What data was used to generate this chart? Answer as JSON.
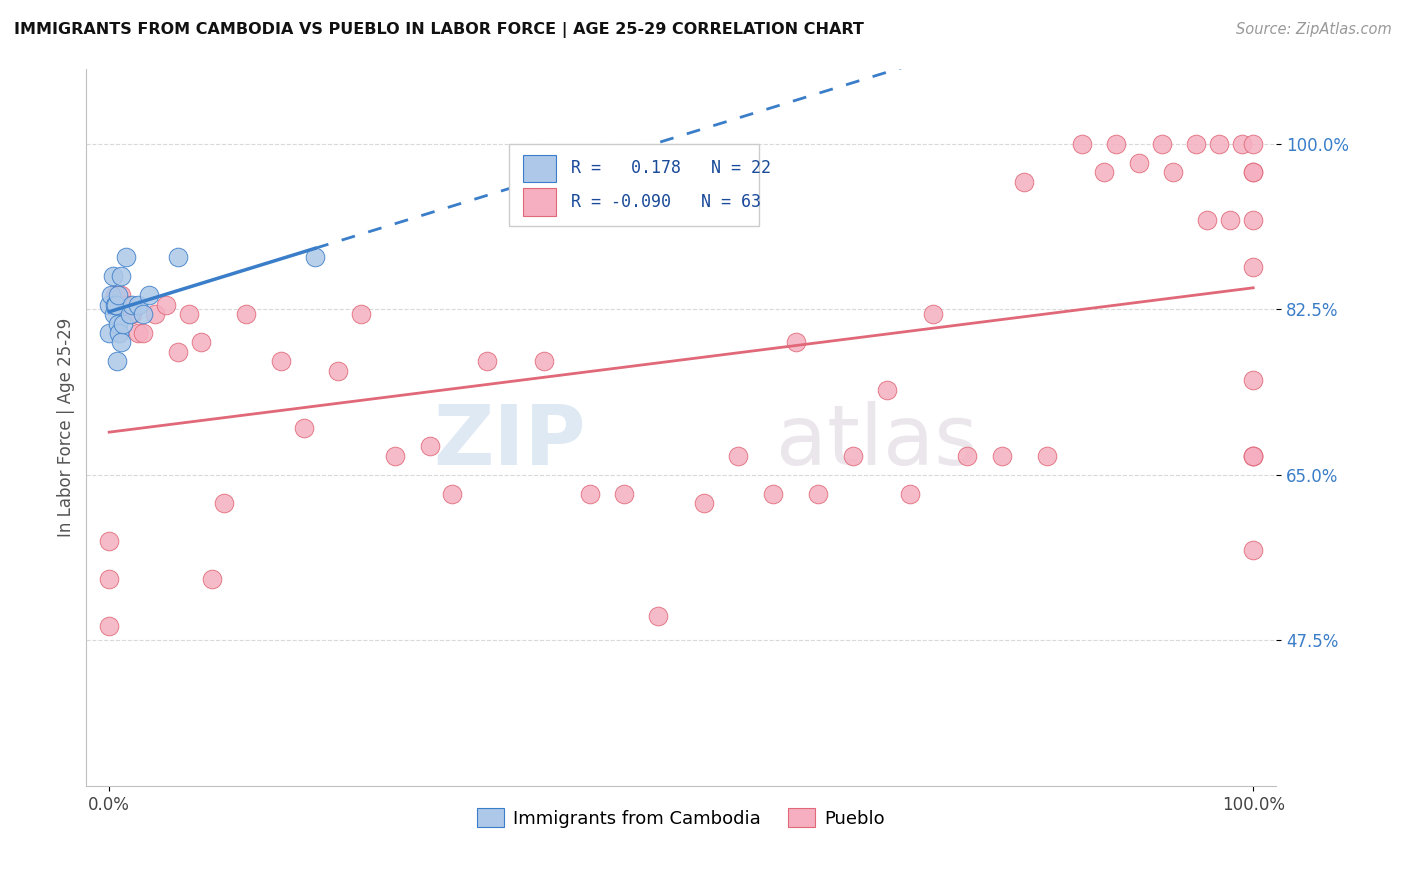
{
  "title": "IMMIGRANTS FROM CAMBODIA VS PUEBLO IN LABOR FORCE | AGE 25-29 CORRELATION CHART",
  "source": "Source: ZipAtlas.com",
  "ylabel": "In Labor Force | Age 25-29",
  "xlim": [
    -0.02,
    1.02
  ],
  "ylim": [
    0.32,
    1.08
  ],
  "ytick_labels": [
    "47.5%",
    "65.0%",
    "82.5%",
    "100.0%"
  ],
  "ytick_values": [
    0.475,
    0.65,
    0.825,
    1.0
  ],
  "xtick_labels": [
    "0.0%",
    "100.0%"
  ],
  "xtick_values": [
    0.0,
    1.0
  ],
  "legend_R_cambodia": "0.178",
  "legend_N_cambodia": "22",
  "legend_R_pueblo": "-0.090",
  "legend_N_pueblo": "63",
  "cambodia_color": "#adc8e8",
  "pueblo_color": "#f5afc0",
  "trendline_cambodia_color": "#3a7dc8",
  "trendline_pueblo_color": "#e06878",
  "watermark_zip": "ZIP",
  "watermark_atlas": "atlas",
  "cambodia_x": [
    0.0,
    0.0,
    0.002,
    0.003,
    0.004,
    0.005,
    0.006,
    0.007,
    0.008,
    0.008,
    0.009,
    0.01,
    0.01,
    0.012,
    0.015,
    0.018,
    0.02,
    0.025,
    0.03,
    0.035,
    0.06,
    0.18
  ],
  "cambodia_y": [
    0.83,
    0.8,
    0.84,
    0.86,
    0.82,
    0.83,
    0.83,
    0.77,
    0.84,
    0.81,
    0.8,
    0.86,
    0.79,
    0.81,
    0.88,
    0.82,
    0.83,
    0.83,
    0.82,
    0.84,
    0.88,
    0.88
  ],
  "pueblo_x": [
    0.0,
    0.0,
    0.0,
    0.005,
    0.01,
    0.015,
    0.02,
    0.025,
    0.03,
    0.04,
    0.05,
    0.06,
    0.07,
    0.08,
    0.09,
    0.1,
    0.12,
    0.15,
    0.17,
    0.2,
    0.22,
    0.25,
    0.28,
    0.3,
    0.33,
    0.38,
    0.42,
    0.45,
    0.48,
    0.52,
    0.55,
    0.58,
    0.6,
    0.62,
    0.65,
    0.68,
    0.7,
    0.72,
    0.75,
    0.78,
    0.8,
    0.82,
    0.85,
    0.87,
    0.88,
    0.9,
    0.92,
    0.93,
    0.95,
    0.96,
    0.97,
    0.98,
    0.99,
    1.0,
    1.0,
    1.0,
    1.0,
    1.0,
    1.0,
    1.0,
    1.0,
    1.0,
    1.0
  ],
  "pueblo_y": [
    0.58,
    0.54,
    0.49,
    0.84,
    0.84,
    0.83,
    0.82,
    0.8,
    0.8,
    0.82,
    0.83,
    0.78,
    0.82,
    0.79,
    0.54,
    0.62,
    0.82,
    0.77,
    0.7,
    0.76,
    0.82,
    0.67,
    0.68,
    0.63,
    0.77,
    0.77,
    0.63,
    0.63,
    0.5,
    0.62,
    0.67,
    0.63,
    0.79,
    0.63,
    0.67,
    0.74,
    0.63,
    0.82,
    0.67,
    0.67,
    0.96,
    0.67,
    1.0,
    0.97,
    1.0,
    0.98,
    1.0,
    0.97,
    1.0,
    0.92,
    1.0,
    0.92,
    1.0,
    0.67,
    1.0,
    0.97,
    0.92,
    0.87,
    0.75,
    0.67,
    0.57,
    0.67,
    0.97
  ]
}
